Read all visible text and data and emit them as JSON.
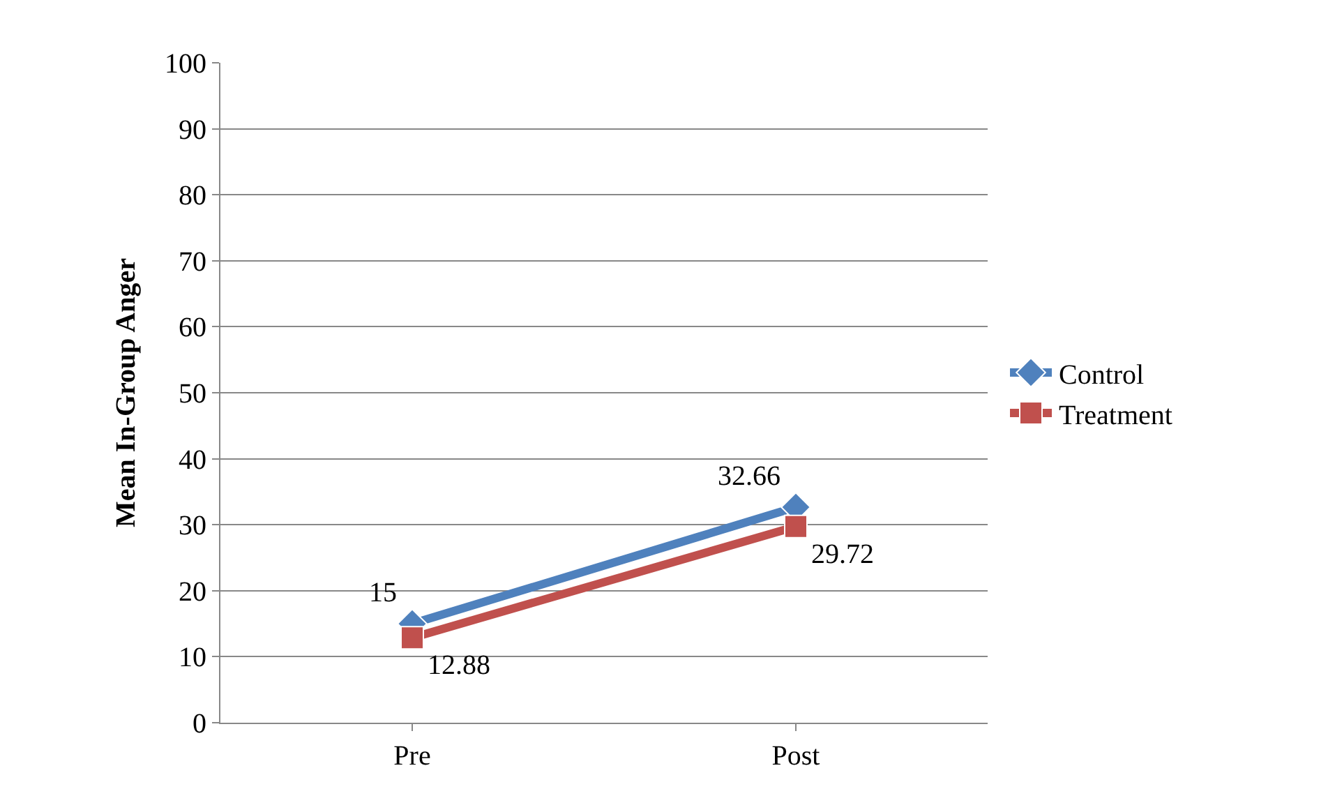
{
  "chart_data": {
    "type": "line",
    "ylabel": "Mean In-Group Anger",
    "categories": [
      "Pre",
      "Post"
    ],
    "series": [
      {
        "name": "Control",
        "color": "#4f81bd",
        "values": [
          15,
          32.66
        ],
        "marker": "diamond"
      },
      {
        "name": "Treatment",
        "color": "#c0504d",
        "values": [
          12.88,
          29.72
        ],
        "marker": "square"
      }
    ],
    "ylim": [
      0,
      100
    ],
    "yticks": [
      0,
      10,
      20,
      30,
      40,
      50,
      60,
      70,
      80,
      90,
      100
    ],
    "grid": "y",
    "legend": "right",
    "data_labels": true,
    "line_style": "solid"
  }
}
